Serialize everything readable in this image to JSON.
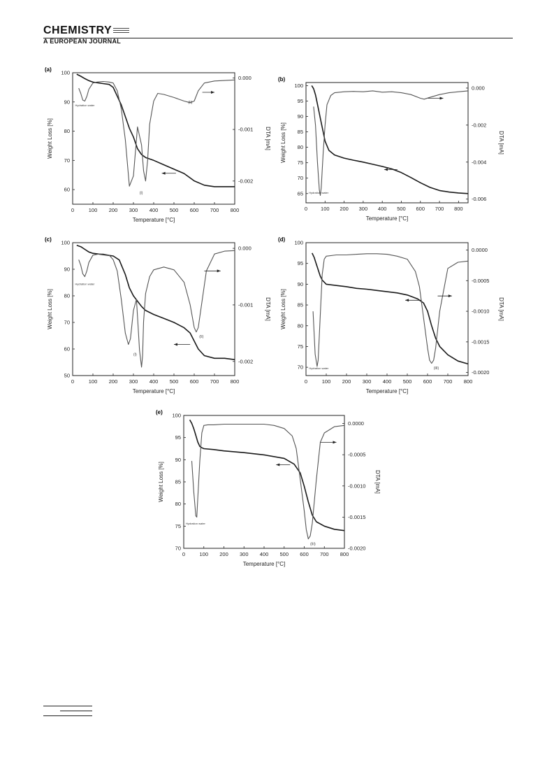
{
  "header": {
    "journal_name": "CHEMISTRY",
    "journal_sub": "A EUROPEAN JOURNAL"
  },
  "chart_data": [
    {
      "panel": "(a)",
      "type": "line",
      "xlabel": "Temperature [°C]",
      "ylabel": "Weight Loss [%]",
      "y2label": "DTA [mA]",
      "xlim": [
        0,
        800
      ],
      "ylim": [
        55,
        100
      ],
      "y2lim": [
        -0.00245,
        0.0001
      ],
      "xticks": [
        0,
        100,
        200,
        300,
        400,
        500,
        600,
        700,
        800
      ],
      "yticks": [
        60,
        70,
        80,
        90,
        100
      ],
      "y2ticks": [
        0.0,
        -0.001,
        -0.002
      ],
      "y2ticklabels": [
        "0.000",
        "-0.001",
        "-0.002"
      ],
      "series": [
        {
          "axis": "left",
          "x": [
            20,
            40,
            60,
            80,
            100,
            150,
            180,
            200,
            220,
            240,
            260,
            280,
            300,
            320,
            340,
            360,
            380,
            400,
            450,
            500,
            550,
            600,
            650,
            700,
            750,
            800
          ],
          "y": [
            99.5,
            98.8,
            98,
            97.3,
            96.8,
            96.3,
            96,
            95,
            92,
            89,
            85,
            81,
            78,
            74,
            72,
            71,
            70.5,
            70,
            68.5,
            67,
            65.5,
            63,
            61.5,
            61,
            61,
            61
          ]
        },
        {
          "axis": "right",
          "x": [
            30,
            40,
            50,
            60,
            70,
            80,
            100,
            120,
            150,
            180,
            200,
            220,
            240,
            260,
            280,
            300,
            320,
            340,
            350,
            360,
            370,
            380,
            400,
            420,
            450,
            500,
            550,
            580,
            600,
            620,
            650,
            700,
            750,
            800
          ],
          "y": [
            -0.0002,
            -0.0003,
            -0.00043,
            -0.00045,
            -0.00036,
            -0.00022,
            -0.0001,
            -8e-05,
            -7e-05,
            -8e-05,
            -0.0001,
            -0.00025,
            -0.0006,
            -0.0012,
            -0.0021,
            -0.0019,
            -0.00095,
            -0.0013,
            -0.0018,
            -0.002,
            -0.0016,
            -0.0009,
            -0.00045,
            -0.0003,
            -0.00032,
            -0.00038,
            -0.00045,
            -0.00048,
            -0.00045,
            -0.00025,
            -0.0001,
            -6e-05,
            -5e-05,
            -4e-05
          ]
        }
      ],
      "annotations": [
        {
          "text": "Hydration water",
          "x": 12,
          "y2": -0.00055
        },
        {
          "text": "(I)",
          "x": 330,
          "y2": -0.00225
        },
        {
          "text": "(II)",
          "x": 570,
          "y2": -0.0005
        }
      ],
      "arrows": [
        {
          "dir": "right",
          "x1": 640,
          "x2": 700,
          "y2": -0.00028
        },
        {
          "dir": "left",
          "x1": 510,
          "x2": 440,
          "y2": -0.00185
        }
      ]
    },
    {
      "panel": "(b)",
      "type": "line",
      "xlabel": "Temperature [°C]",
      "ylabel": "Weight Loss [%]",
      "y2label": "DTA [mA]",
      "xlim": [
        0,
        850
      ],
      "ylim": [
        62,
        101
      ],
      "y2lim": [
        -0.0062,
        0.0003
      ],
      "xticks": [
        0,
        100,
        200,
        300,
        400,
        500,
        600,
        700,
        800
      ],
      "yticks": [
        65,
        70,
        75,
        80,
        85,
        90,
        95,
        100
      ],
      "y2ticks": [
        0.0,
        -0.002,
        -0.004,
        -0.006
      ],
      "y2ticklabels": [
        "0.000",
        "-0.002",
        "-0.004",
        "-0.006"
      ],
      "series": [
        {
          "axis": "left",
          "x": [
            30,
            40,
            50,
            60,
            70,
            80,
            90,
            100,
            120,
            150,
            200,
            250,
            300,
            350,
            400,
            450,
            500,
            550,
            600,
            650,
            700,
            750,
            800,
            850
          ],
          "y": [
            100,
            99,
            97,
            94,
            91,
            88,
            85,
            82,
            79,
            77.5,
            76.5,
            75.8,
            75.2,
            74.5,
            73.8,
            73,
            71.8,
            70.2,
            68.5,
            67,
            66,
            65.5,
            65.2,
            65
          ]
        },
        {
          "axis": "right",
          "x": [
            40,
            50,
            60,
            70,
            75,
            80,
            90,
            100,
            110,
            130,
            150,
            200,
            250,
            300,
            350,
            400,
            450,
            500,
            550,
            600,
            620,
            650,
            700,
            750,
            800,
            850
          ],
          "y": [
            -0.001,
            -0.002,
            -0.004,
            -0.0055,
            -0.0058,
            -0.0054,
            -0.0035,
            -0.002,
            -0.0009,
            -0.0004,
            -0.00025,
            -0.0002,
            -0.00018,
            -0.0002,
            -0.00015,
            -0.00022,
            -0.0002,
            -0.00025,
            -0.00035,
            -0.00055,
            -0.0006,
            -0.0005,
            -0.00035,
            -0.00025,
            -0.0002,
            -0.00015
          ]
        }
      ],
      "annotations": [
        {
          "text": "Hydration water",
          "x": 15,
          "y2": -0.0057
        }
      ],
      "arrows": [
        {
          "dir": "right",
          "x1": 640,
          "x2": 720,
          "y2": -0.00055
        },
        {
          "dir": "left",
          "x1": 480,
          "x2": 410,
          "y2": -0.0044
        }
      ]
    },
    {
      "panel": "(c)",
      "type": "line",
      "xlabel": "Temperature [°C]",
      "ylabel": "Weight Loss [%]",
      "y2label": "DTA [mA]",
      "xlim": [
        0,
        800
      ],
      "ylim": [
        50,
        100
      ],
      "y2lim": [
        -0.00225,
        0.0001
      ],
      "xticks": [
        0,
        100,
        200,
        300,
        400,
        500,
        600,
        700,
        800
      ],
      "yticks": [
        50,
        60,
        70,
        80,
        90,
        100
      ],
      "y2ticks": [
        0.0,
        -0.001,
        -0.002
      ],
      "y2ticklabels": [
        "0.000",
        "-0.001",
        "-0.002"
      ],
      "series": [
        {
          "axis": "left",
          "x": [
            20,
            40,
            60,
            80,
            100,
            150,
            200,
            230,
            260,
            280,
            300,
            320,
            340,
            360,
            400,
            450,
            500,
            550,
            580,
            600,
            620,
            650,
            700,
            750,
            800
          ],
          "y": [
            99,
            98.5,
            97.5,
            96.5,
            96,
            95.5,
            95,
            93.5,
            88,
            83,
            80,
            78,
            76,
            74.5,
            73,
            71.5,
            70,
            68,
            66,
            63,
            60,
            57.5,
            56.5,
            56.5,
            56
          ]
        },
        {
          "axis": "right",
          "x": [
            30,
            40,
            50,
            60,
            70,
            80,
            100,
            130,
            150,
            180,
            200,
            220,
            240,
            260,
            275,
            285,
            300,
            315,
            320,
            330,
            340,
            345,
            350,
            360,
            380,
            400,
            450,
            500,
            550,
            580,
            600,
            610,
            620,
            640,
            660,
            700,
            750,
            800
          ],
          "y": [
            -0.0002,
            -0.0003,
            -0.00045,
            -0.0005,
            -0.0004,
            -0.00025,
            -0.00012,
            -0.0001,
            -0.0001,
            -0.00012,
            -0.0002,
            -0.0004,
            -0.0009,
            -0.0015,
            -0.0017,
            -0.0016,
            -0.0011,
            -0.0009,
            -0.0012,
            -0.0018,
            -0.0021,
            -0.0019,
            -0.0013,
            -0.0008,
            -0.0005,
            -0.00038,
            -0.00033,
            -0.00038,
            -0.0006,
            -0.001,
            -0.0014,
            -0.00148,
            -0.0014,
            -0.0009,
            -0.0004,
            -0.0001,
            -5e-05,
            -4e-05
          ]
        }
      ],
      "annotations": [
        {
          "text": "Hydration water",
          "x": 12,
          "y2": -0.00065
        },
        {
          "text": "(I)",
          "x": 300,
          "y2": -0.0019
        },
        {
          "text": "(II)",
          "x": 625,
          "y2": -0.00158
        }
      ],
      "arrows": [
        {
          "dir": "right",
          "x1": 650,
          "x2": 730,
          "y2": -0.0004
        },
        {
          "dir": "left",
          "x1": 580,
          "x2": 500,
          "y2": -0.0017
        }
      ]
    },
    {
      "panel": "(d)",
      "type": "line",
      "xlabel": "Temperature [°C]",
      "ylabel": "Weight Loss [%]",
      "y2label": "DTA [mA]",
      "xlim": [
        0,
        800
      ],
      "ylim": [
        68,
        100
      ],
      "y2lim": [
        -0.00205,
        0.00012
      ],
      "xticks": [
        0,
        100,
        200,
        300,
        400,
        500,
        600,
        700,
        800
      ],
      "yticks": [
        70,
        75,
        80,
        85,
        90,
        95,
        100
      ],
      "y2ticks": [
        0.0,
        -0.0005,
        -0.001,
        -0.0015,
        -0.002
      ],
      "y2ticklabels": [
        "0.0000",
        "-0.0005",
        "-0.0010",
        "-0.0015",
        "-0.0020"
      ],
      "series": [
        {
          "axis": "left",
          "x": [
            30,
            40,
            50,
            60,
            70,
            80,
            90,
            100,
            150,
            200,
            250,
            300,
            350,
            400,
            450,
            500,
            550,
            580,
            600,
            620,
            640,
            660,
            700,
            750,
            800
          ],
          "y": [
            97.5,
            96.5,
            95,
            93.5,
            92,
            91,
            90.5,
            90,
            89.7,
            89.4,
            89,
            88.8,
            88.5,
            88.2,
            87.9,
            87.4,
            86.5,
            85.5,
            83.5,
            80,
            77,
            75,
            73,
            71.5,
            70.8
          ]
        },
        {
          "axis": "right",
          "x": [
            35,
            45,
            55,
            60,
            70,
            80,
            90,
            100,
            150,
            200,
            250,
            300,
            350,
            400,
            450,
            500,
            540,
            560,
            580,
            600,
            610,
            620,
            630,
            640,
            660,
            700,
            750,
            800
          ],
          "y": [
            -0.001,
            -0.0017,
            -0.0019,
            -0.0018,
            -0.0011,
            -0.0004,
            -0.00015,
            -0.0001,
            -8e-05,
            -8e-05,
            -7e-05,
            -6e-05,
            -6e-05,
            -7e-05,
            -0.0001,
            -0.00015,
            -0.00035,
            -0.0006,
            -0.0011,
            -0.0016,
            -0.0018,
            -0.00185,
            -0.0018,
            -0.0016,
            -0.001,
            -0.0003,
            -0.0002,
            -0.00018
          ]
        }
      ],
      "annotations": [
        {
          "text": "Hydration water",
          "x": 15,
          "y2": -0.00195
        },
        {
          "text": "(III)",
          "x": 630,
          "y2": -0.00195
        }
      ],
      "arrows": [
        {
          "dir": "right",
          "x1": 650,
          "x2": 720,
          "y2": -0.00075
        },
        {
          "dir": "left",
          "x1": 570,
          "x2": 490,
          "y2": -0.00082
        }
      ]
    },
    {
      "panel": "(e)",
      "type": "line",
      "xlabel": "Temperature [°C]",
      "ylabel": "Weight Loss [%]",
      "y2label": "DTA [mA]",
      "xlim": [
        0,
        800
      ],
      "ylim": [
        70,
        100
      ],
      "y2lim": [
        -0.002,
        0.00013
      ],
      "xticks": [
        0,
        100,
        200,
        300,
        400,
        500,
        600,
        700,
        800
      ],
      "yticks": [
        70,
        75,
        80,
        85,
        90,
        95,
        100
      ],
      "y2ticks": [
        0.0,
        -0.0005,
        -0.001,
        -0.0015,
        -0.002
      ],
      "y2ticklabels": [
        "0.0000",
        "-0.0005",
        "-0.0010",
        "-0.0015",
        "-0.0020"
      ],
      "series": [
        {
          "axis": "left",
          "x": [
            30,
            40,
            50,
            60,
            70,
            80,
            90,
            100,
            150,
            200,
            300,
            400,
            500,
            550,
            580,
            600,
            620,
            640,
            660,
            700,
            750,
            800
          ],
          "y": [
            99,
            98.2,
            97,
            95.5,
            94,
            93,
            92.7,
            92.5,
            92.3,
            92,
            91.6,
            91.1,
            90.3,
            89,
            87,
            84,
            80.5,
            77.5,
            76,
            75,
            74.3,
            74
          ]
        },
        {
          "axis": "right",
          "x": [
            40,
            50,
            60,
            65,
            70,
            80,
            90,
            100,
            120,
            150,
            200,
            300,
            400,
            450,
            500,
            540,
            560,
            580,
            600,
            610,
            620,
            630,
            640,
            660,
            680,
            700,
            750,
            800
          ],
          "y": [
            -0.0006,
            -0.0011,
            -0.00148,
            -0.0015,
            -0.0012,
            -0.0006,
            -0.00015,
            -3e-05,
            -2e-05,
            -2e-05,
            -1e-05,
            -1e-05,
            -1e-05,
            -3e-05,
            -8e-05,
            -0.0002,
            -0.0004,
            -0.0009,
            -0.0014,
            -0.0017,
            -0.00185,
            -0.0018,
            -0.0016,
            -0.0009,
            -0.0003,
            -0.00015,
            -5e-05,
            -3e-05
          ]
        }
      ],
      "annotations": [
        {
          "text": "Hydration water",
          "x": 10,
          "y2": -0.00162
        },
        {
          "text": "(III)",
          "x": 630,
          "y2": -0.00195
        }
      ],
      "arrows": [
        {
          "dir": "right",
          "x1": 680,
          "x2": 760,
          "y2": -0.0003
        },
        {
          "dir": "left",
          "x1": 530,
          "x2": 460,
          "y2": -0.00066
        }
      ]
    }
  ]
}
